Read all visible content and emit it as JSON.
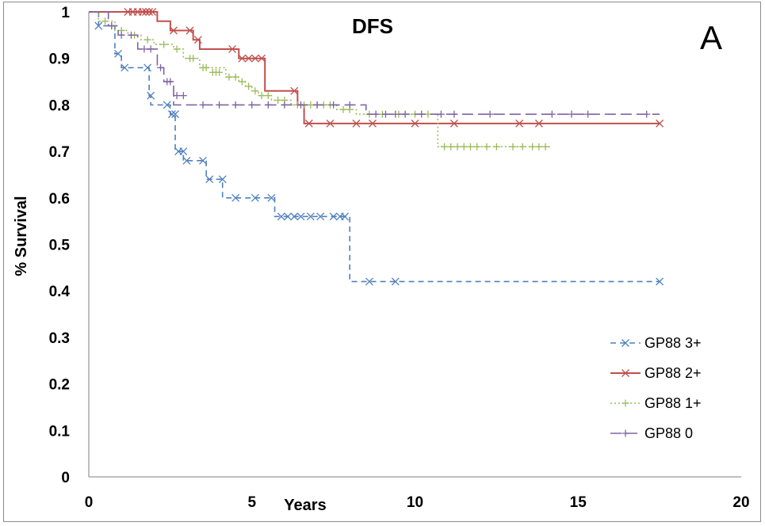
{
  "chart_data": {
    "type": "line",
    "title": "DFS",
    "panel_label": "A",
    "xlabel": "Years",
    "ylabel": "% Survival",
    "xlim": [
      0,
      20
    ],
    "ylim": [
      0,
      1
    ],
    "x_ticks": [
      "0",
      "5",
      "10",
      "15",
      "20"
    ],
    "y_ticks": [
      "0",
      "0.1",
      "0.2",
      "0.3",
      "0.4",
      "0.5",
      "0.6",
      "0.7",
      "0.8",
      "0.9",
      "1"
    ],
    "grid": false,
    "legend_position": "bottom-right",
    "series": [
      {
        "name": "GP88 3+",
        "color": "#4f81bd",
        "line_style": "dashed",
        "marker": "x",
        "steps": [
          [
            0,
            1
          ],
          [
            0.3,
            0.97
          ],
          [
            0.8,
            0.91
          ],
          [
            1.0,
            0.88
          ],
          [
            1.85,
            0.82
          ],
          [
            1.9,
            0.8
          ],
          [
            2.5,
            0.78
          ],
          [
            2.65,
            0.7
          ],
          [
            2.9,
            0.68
          ],
          [
            3.6,
            0.64
          ],
          [
            4.1,
            0.6
          ],
          [
            5.7,
            0.56
          ],
          [
            8.0,
            0.42
          ],
          [
            17.5,
            0.42
          ]
        ],
        "censors": [
          [
            0.3,
            0.97
          ],
          [
            0.9,
            0.91
          ],
          [
            1.1,
            0.88
          ],
          [
            1.8,
            0.88
          ],
          [
            1.9,
            0.82
          ],
          [
            2.4,
            0.8
          ],
          [
            2.55,
            0.78
          ],
          [
            2.65,
            0.78
          ],
          [
            2.75,
            0.7
          ],
          [
            2.9,
            0.7
          ],
          [
            3.0,
            0.68
          ],
          [
            3.5,
            0.68
          ],
          [
            3.7,
            0.64
          ],
          [
            4.1,
            0.64
          ],
          [
            4.5,
            0.6
          ],
          [
            5.1,
            0.6
          ],
          [
            5.6,
            0.6
          ],
          [
            5.9,
            0.56
          ],
          [
            6.1,
            0.56
          ],
          [
            6.3,
            0.56
          ],
          [
            6.5,
            0.56
          ],
          [
            6.8,
            0.56
          ],
          [
            7.1,
            0.56
          ],
          [
            7.5,
            0.56
          ],
          [
            7.7,
            0.56
          ],
          [
            7.85,
            0.56
          ],
          [
            8.6,
            0.42
          ],
          [
            9.4,
            0.42
          ],
          [
            17.5,
            0.42
          ]
        ]
      },
      {
        "name": "GP88 2+",
        "color": "#c0504d",
        "line_style": "solid",
        "marker": "x",
        "steps": [
          [
            0,
            1
          ],
          [
            2.1,
            0.98
          ],
          [
            2.5,
            0.96
          ],
          [
            3.2,
            0.94
          ],
          [
            3.4,
            0.92
          ],
          [
            4.6,
            0.9
          ],
          [
            5.4,
            0.83
          ],
          [
            6.4,
            0.8
          ],
          [
            6.6,
            0.76
          ],
          [
            17.5,
            0.76
          ]
        ],
        "censors": [
          [
            1.2,
            1.0
          ],
          [
            1.35,
            1.0
          ],
          [
            1.5,
            1.0
          ],
          [
            1.65,
            1.0
          ],
          [
            1.75,
            1.0
          ],
          [
            1.85,
            1.0
          ],
          [
            1.95,
            1.0
          ],
          [
            2.6,
            0.96
          ],
          [
            3.1,
            0.96
          ],
          [
            3.35,
            0.94
          ],
          [
            4.4,
            0.92
          ],
          [
            4.7,
            0.9
          ],
          [
            4.9,
            0.9
          ],
          [
            5.1,
            0.9
          ],
          [
            5.3,
            0.9
          ],
          [
            6.3,
            0.83
          ],
          [
            6.75,
            0.76
          ],
          [
            7.4,
            0.76
          ],
          [
            8.2,
            0.76
          ],
          [
            8.7,
            0.76
          ],
          [
            10.0,
            0.76
          ],
          [
            11.2,
            0.76
          ],
          [
            13.2,
            0.76
          ],
          [
            13.8,
            0.76
          ],
          [
            17.5,
            0.76
          ]
        ]
      },
      {
        "name": "GP88 1+",
        "color": "#9bbb59",
        "line_style": "dotted",
        "marker": "+",
        "steps": [
          [
            0,
            1
          ],
          [
            0.3,
            0.98
          ],
          [
            0.8,
            0.96
          ],
          [
            1.2,
            0.95
          ],
          [
            1.6,
            0.94
          ],
          [
            2.0,
            0.93
          ],
          [
            2.6,
            0.92
          ],
          [
            2.9,
            0.9
          ],
          [
            3.4,
            0.88
          ],
          [
            4.2,
            0.86
          ],
          [
            4.6,
            0.85
          ],
          [
            4.8,
            0.84
          ],
          [
            5.0,
            0.83
          ],
          [
            5.2,
            0.82
          ],
          [
            5.6,
            0.81
          ],
          [
            6.2,
            0.8
          ],
          [
            7.6,
            0.79
          ],
          [
            8.2,
            0.78
          ],
          [
            10.7,
            0.71
          ],
          [
            14.2,
            0.71
          ]
        ],
        "censors": [
          [
            0.5,
            0.98
          ],
          [
            0.7,
            0.97
          ],
          [
            1.0,
            0.96
          ],
          [
            1.4,
            0.95
          ],
          [
            1.8,
            0.94
          ],
          [
            2.3,
            0.93
          ],
          [
            2.7,
            0.92
          ],
          [
            3.1,
            0.9
          ],
          [
            3.2,
            0.9
          ],
          [
            3.5,
            0.88
          ],
          [
            3.6,
            0.88
          ],
          [
            3.8,
            0.87
          ],
          [
            3.9,
            0.87
          ],
          [
            4.0,
            0.87
          ],
          [
            4.3,
            0.86
          ],
          [
            4.5,
            0.86
          ],
          [
            4.7,
            0.85
          ],
          [
            4.9,
            0.84
          ],
          [
            5.1,
            0.83
          ],
          [
            5.3,
            0.82
          ],
          [
            5.5,
            0.82
          ],
          [
            5.8,
            0.81
          ],
          [
            6.0,
            0.81
          ],
          [
            6.4,
            0.8
          ],
          [
            6.6,
            0.8
          ],
          [
            6.8,
            0.8
          ],
          [
            7.0,
            0.8
          ],
          [
            7.2,
            0.8
          ],
          [
            7.4,
            0.8
          ],
          [
            7.8,
            0.79
          ],
          [
            8.0,
            0.79
          ],
          [
            8.6,
            0.78
          ],
          [
            9.0,
            0.78
          ],
          [
            9.5,
            0.78
          ],
          [
            10.0,
            0.78
          ],
          [
            10.4,
            0.78
          ],
          [
            10.9,
            0.71
          ],
          [
            11.1,
            0.71
          ],
          [
            11.3,
            0.71
          ],
          [
            11.5,
            0.71
          ],
          [
            11.7,
            0.71
          ],
          [
            11.9,
            0.71
          ],
          [
            12.2,
            0.71
          ],
          [
            12.5,
            0.71
          ],
          [
            13.0,
            0.71
          ],
          [
            13.3,
            0.71
          ],
          [
            13.6,
            0.71
          ],
          [
            13.8,
            0.71
          ],
          [
            14.0,
            0.71
          ]
        ]
      },
      {
        "name": "GP88 0",
        "color": "#8064a2",
        "line_style": "long-dashed",
        "marker": "+",
        "steps": [
          [
            0,
            1
          ],
          [
            0.6,
            0.97
          ],
          [
            0.9,
            0.95
          ],
          [
            1.5,
            0.92
          ],
          [
            2.1,
            0.88
          ],
          [
            2.3,
            0.85
          ],
          [
            2.6,
            0.8
          ],
          [
            8.5,
            0.78
          ],
          [
            17.5,
            0.78
          ]
        ],
        "censors": [
          [
            0.7,
            0.97
          ],
          [
            1.0,
            0.95
          ],
          [
            1.3,
            0.95
          ],
          [
            1.7,
            0.92
          ],
          [
            1.9,
            0.92
          ],
          [
            2.2,
            0.88
          ],
          [
            2.4,
            0.85
          ],
          [
            2.5,
            0.85
          ],
          [
            2.7,
            0.82
          ],
          [
            2.9,
            0.82
          ],
          [
            3.5,
            0.8
          ],
          [
            4.0,
            0.8
          ],
          [
            4.5,
            0.8
          ],
          [
            5.0,
            0.8
          ],
          [
            5.5,
            0.8
          ],
          [
            6.0,
            0.8
          ],
          [
            6.5,
            0.8
          ],
          [
            7.0,
            0.8
          ],
          [
            7.5,
            0.8
          ],
          [
            8.0,
            0.8
          ],
          [
            8.8,
            0.78
          ],
          [
            9.1,
            0.78
          ],
          [
            9.4,
            0.78
          ],
          [
            9.7,
            0.78
          ],
          [
            10.2,
            0.78
          ],
          [
            10.8,
            0.78
          ],
          [
            11.2,
            0.78
          ],
          [
            12.3,
            0.78
          ],
          [
            14.2,
            0.78
          ],
          [
            14.8,
            0.78
          ],
          [
            15.3,
            0.78
          ],
          [
            17.1,
            0.78
          ]
        ]
      }
    ]
  }
}
